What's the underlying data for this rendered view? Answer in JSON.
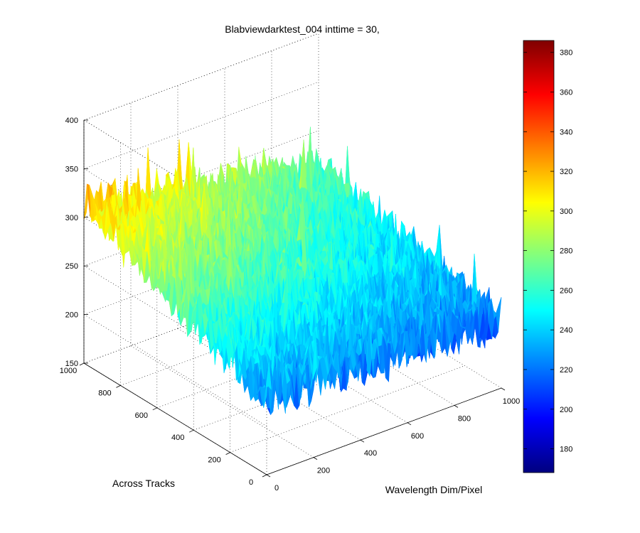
{
  "chart_data": {
    "type": "surface",
    "title": "Blabviewdarktest_004 inttime = 30,",
    "xlabel": "Wavelength Dim/Pixel",
    "ylabel": "Across Tracks",
    "zlabel": "",
    "xlim": [
      0,
      1000
    ],
    "ylim": [
      0,
      1000
    ],
    "zlim": [
      150,
      400
    ],
    "x_ticks": [
      0,
      200,
      400,
      600,
      800,
      1000
    ],
    "y_ticks": [
      0,
      200,
      400,
      600,
      800,
      1000
    ],
    "z_ticks": [
      150,
      200,
      250,
      300,
      350,
      400
    ],
    "colorbar": {
      "colormap": "jet",
      "range": [
        168,
        386
      ],
      "ticks": [
        180,
        200,
        220,
        240,
        260,
        280,
        300,
        320,
        340,
        360,
        380
      ]
    },
    "surface_trend": {
      "corners": {
        "x0_y0": 227,
        "x1000_y0": 220,
        "x0_y1000": 315,
        "x1000_y1000": 262
      },
      "noise_amplitude": 40,
      "peak_near": {
        "x": 0,
        "y": 1000,
        "value": 380
      }
    },
    "grid": true,
    "colorbar_position": "right"
  }
}
